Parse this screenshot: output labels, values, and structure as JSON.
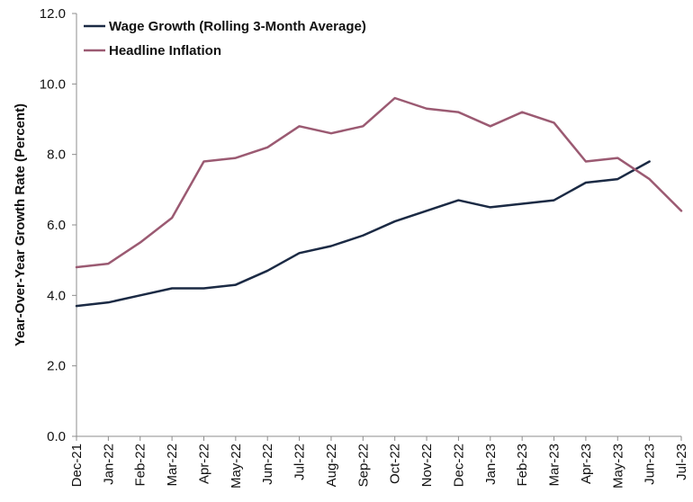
{
  "chart_data": {
    "type": "line",
    "title": "",
    "xlabel": "",
    "ylabel": "Year-Over-Year Growth Rate (Percent)",
    "ylim": [
      0,
      12
    ],
    "yticks": [
      "0.0",
      "2.0",
      "4.0",
      "6.0",
      "8.0",
      "10.0",
      "12.0"
    ],
    "grid": false,
    "legend_position": "top-left",
    "categories": [
      "Dec-21",
      "Jan-22",
      "Feb-22",
      "Mar-22",
      "Apr-22",
      "May-22",
      "Jun-22",
      "Jul-22",
      "Aug-22",
      "Sep-22",
      "Oct-22",
      "Nov-22",
      "Dec-22",
      "Jan-23",
      "Feb-23",
      "Mar-23",
      "Apr-23",
      "May-23",
      "Jun-23",
      "Jul-23"
    ],
    "series": [
      {
        "name": "Wage Growth (Rolling 3-Month Average)",
        "color": "#1b2a44",
        "values": [
          3.7,
          3.8,
          4.0,
          4.2,
          4.2,
          4.3,
          4.7,
          5.2,
          5.4,
          5.7,
          6.1,
          6.4,
          6.7,
          6.5,
          6.6,
          6.7,
          7.2,
          7.3,
          7.8,
          null
        ]
      },
      {
        "name": "Headline Inflation",
        "color": "#9b5a72",
        "values": [
          4.8,
          4.9,
          5.5,
          6.2,
          7.8,
          7.9,
          8.2,
          8.8,
          8.6,
          8.8,
          9.6,
          9.3,
          9.2,
          8.8,
          9.2,
          8.9,
          7.8,
          7.9,
          7.3,
          6.4
        ]
      }
    ]
  }
}
